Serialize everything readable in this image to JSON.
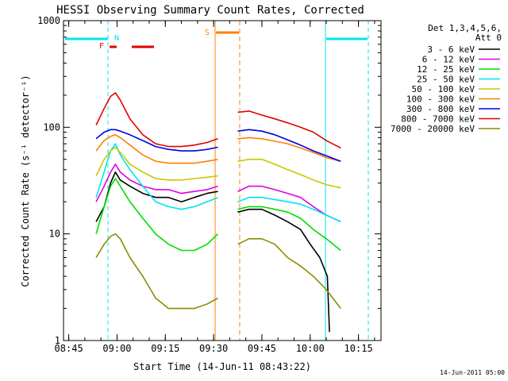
{
  "chart_data": {
    "type": "line",
    "title": "HESSI Observing Summary Count Rates, Corrected",
    "xlabel": "Start Time (14-Jun-11 08:43:22)",
    "ylabel": "Corrected Count Rate (s⁻¹ detector⁻¹)",
    "x_ticks": [
      "08:45",
      "09:00",
      "09:15",
      "09:30",
      "09:45",
      "10:00",
      "10:15"
    ],
    "y_ticks": [
      "1",
      "10",
      "100",
      "1000"
    ],
    "yscale": "log",
    "ylim": [
      1,
      1000
    ],
    "xlim": [
      "08:43:22",
      "10:22:00"
    ],
    "legend": {
      "header": [
        "Det 1,3,4,5,6,",
        "Att 0"
      ],
      "placement": "right"
    },
    "footer": "14-Jun-2011 05:00",
    "flags": [
      {
        "label": "N",
        "color": "#00e5ee"
      },
      {
        "label": "F",
        "color": "#e00000"
      },
      {
        "label": "S",
        "color": "#ff7f00"
      }
    ],
    "series": [
      {
        "name": "3 - 6 keV",
        "color": "#000000",
        "segments": [
          {
            "t": [
              "08:53:30",
              "08:56",
              "08:58",
              "08:59:30",
              "09:01",
              "09:04",
              "09:08",
              "09:12",
              "09:16",
              "09:20",
              "09:24",
              "09:28",
              "09:31:20"
            ],
            "v": [
              13,
              18,
              30,
              38,
              32,
              28,
              24,
              22,
              22,
              20,
              22,
              24,
              25
            ]
          },
          {
            "t": [
              "09:37:30",
              "09:41",
              "09:45",
              "09:49",
              "09:53",
              "09:57",
              "10:00",
              "10:03",
              "10:05:20",
              "10:06"
            ],
            "v": [
              16,
              17,
              17,
              15,
              13,
              11,
              8,
              6,
              4,
              1.2
            ]
          }
        ]
      },
      {
        "name": "6 - 12 keV",
        "color": "#e000e0",
        "segments": [
          {
            "t": [
              "08:53:30",
              "08:56",
              "08:58",
              "08:59:30",
              "09:01",
              "09:04",
              "09:08",
              "09:12",
              "09:16",
              "09:20",
              "09:24",
              "09:28",
              "09:31:20"
            ],
            "v": [
              20,
              28,
              38,
              45,
              38,
              32,
              28,
              26,
              26,
              24,
              25,
              26,
              28
            ]
          },
          {
            "t": [
              "09:37:30",
              "09:41",
              "09:45",
              "09:49",
              "09:53",
              "09:57",
              "10:01",
              "10:05",
              "10:09:30"
            ],
            "v": [
              25,
              28,
              28,
              26,
              24,
              22,
              18,
              15,
              13
            ]
          }
        ]
      },
      {
        "name": "12 - 25 keV",
        "color": "#00dd00",
        "segments": [
          {
            "t": [
              "08:53:30",
              "08:56",
              "08:58",
              "08:59:30",
              "09:01",
              "09:04",
              "09:08",
              "09:12",
              "09:16",
              "09:20",
              "09:24",
              "09:28",
              "09:31:20"
            ],
            "v": [
              10,
              18,
              28,
              33,
              28,
              20,
              14,
              10,
              8,
              7,
              7,
              8,
              10
            ]
          },
          {
            "t": [
              "09:37:30",
              "09:41",
              "09:45",
              "09:49",
              "09:53",
              "09:57",
              "10:01",
              "10:05",
              "10:09:30"
            ],
            "v": [
              17,
              18,
              18,
              17,
              16,
              14,
              11,
              9,
              7
            ]
          }
        ]
      },
      {
        "name": "25 - 50 keV",
        "color": "#00e5ee",
        "segments": [
          {
            "t": [
              "08:53:30",
              "08:56",
              "08:58",
              "08:59:30",
              "09:01",
              "09:04",
              "09:08",
              "09:12",
              "09:16",
              "09:20",
              "09:24",
              "09:28",
              "09:31:20"
            ],
            "v": [
              22,
              38,
              60,
              70,
              55,
              40,
              28,
              20,
              18,
              17,
              18,
              20,
              22
            ]
          },
          {
            "t": [
              "09:37:30",
              "09:41",
              "09:45",
              "09:49",
              "09:53",
              "09:57",
              "10:01",
              "10:05",
              "10:09:30"
            ],
            "v": [
              20,
              22,
              22,
              21,
              20,
              19,
              17,
              15,
              13
            ]
          }
        ]
      },
      {
        "name": "50 - 100 keV",
        "color": "#c8c800",
        "segments": [
          {
            "t": [
              "08:53:30",
              "08:56",
              "08:58",
              "08:59:30",
              "09:01",
              "09:04",
              "09:08",
              "09:12",
              "09:16",
              "09:20",
              "09:24",
              "09:28",
              "09:31:20"
            ],
            "v": [
              35,
              50,
              60,
              65,
              58,
              45,
              38,
              33,
              32,
              32,
              33,
              34,
              35
            ]
          },
          {
            "t": [
              "09:37:30",
              "09:41",
              "09:45",
              "09:49",
              "09:53",
              "09:57",
              "10:01",
              "10:05",
              "10:09:30"
            ],
            "v": [
              48,
              50,
              50,
              45,
              40,
              36,
              32,
              29,
              27
            ]
          }
        ]
      },
      {
        "name": "100 - 300 keV",
        "color": "#ff7f00",
        "segments": [
          {
            "t": [
              "08:53:30",
              "08:56",
              "08:58",
              "08:59:30",
              "09:01",
              "09:04",
              "09:08",
              "09:12",
              "09:16",
              "09:20",
              "09:24",
              "09:28",
              "09:31:20"
            ],
            "v": [
              60,
              75,
              82,
              85,
              80,
              68,
              55,
              48,
              46,
              46,
              46,
              48,
              50
            ]
          },
          {
            "t": [
              "09:37:30",
              "09:41",
              "09:45",
              "09:49",
              "09:53",
              "09:57",
              "10:01",
              "10:05",
              "10:09:30"
            ],
            "v": [
              78,
              80,
              78,
              74,
              70,
              64,
              58,
              52,
              48
            ]
          }
        ]
      },
      {
        "name": "300 - 800 keV",
        "color": "#0000e0",
        "segments": [
          {
            "t": [
              "08:53:30",
              "08:56",
              "08:58",
              "08:59:30",
              "09:01",
              "09:04",
              "09:08",
              "09:12",
              "09:16",
              "09:20",
              "09:24",
              "09:28",
              "09:31:20"
            ],
            "v": [
              78,
              90,
              95,
              95,
              92,
              85,
              75,
              66,
              62,
              60,
              60,
              62,
              65
            ]
          },
          {
            "t": [
              "09:37:30",
              "09:41",
              "09:45",
              "09:49",
              "09:53",
              "09:57",
              "10:01",
              "10:05",
              "10:09:30"
            ],
            "v": [
              92,
              95,
              92,
              85,
              76,
              68,
              60,
              54,
              48
            ]
          }
        ]
      },
      {
        "name": "800 - 7000 keV",
        "color": "#e00000",
        "segments": [
          {
            "t": [
              "08:53:30",
              "08:56",
              "08:58",
              "08:59:30",
              "09:01",
              "09:04",
              "09:08",
              "09:12",
              "09:16",
              "09:20",
              "09:24",
              "09:28",
              "09:31:20"
            ],
            "v": [
              105,
              150,
              195,
              210,
              180,
              120,
              85,
              70,
              66,
              66,
              68,
              72,
              78
            ]
          },
          {
            "t": [
              "09:37:30",
              "09:41",
              "09:45",
              "09:49",
              "09:53",
              "09:57",
              "10:01",
              "10:05",
              "10:09:30"
            ],
            "v": [
              138,
              142,
              130,
              120,
              110,
              100,
              90,
              75,
              64
            ]
          }
        ]
      },
      {
        "name": "7000 - 20000 keV",
        "color": "#8b8b00",
        "segments": [
          {
            "t": [
              "08:53:30",
              "08:56",
              "08:58",
              "08:59:30",
              "09:01",
              "09:04",
              "09:08",
              "09:12",
              "09:16",
              "09:20",
              "09:24",
              "09:28",
              "09:31:20"
            ],
            "v": [
              6,
              8,
              9.5,
              10,
              9,
              6,
              4,
              2.5,
              2,
              2,
              2,
              2.2,
              2.5
            ]
          },
          {
            "t": [
              "09:37:30",
              "09:41",
              "09:45",
              "09:49",
              "09:53",
              "09:57",
              "10:01",
              "10:05",
              "10:09:30"
            ],
            "v": [
              8,
              9,
              9,
              8,
              6,
              5,
              4,
              3,
              2
            ]
          }
        ]
      }
    ]
  }
}
